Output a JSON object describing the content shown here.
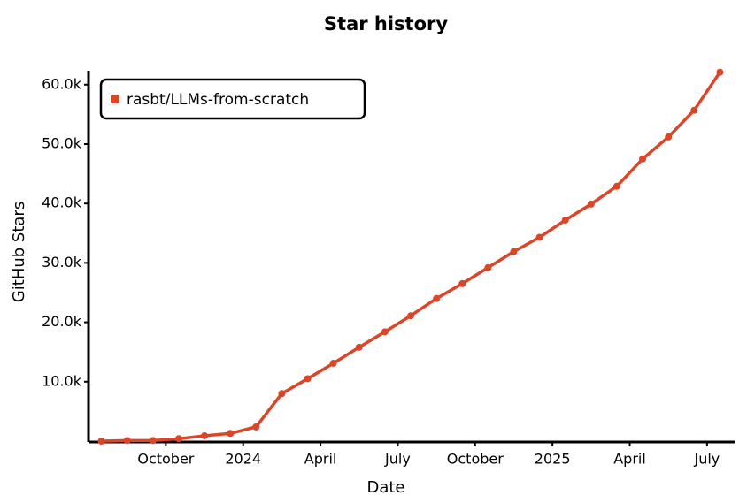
{
  "chart_data": {
    "type": "line",
    "title": "Star history",
    "x_label": "Date",
    "y_label": "GitHub Stars",
    "x": [
      "2023-07",
      "2023-08",
      "2023-09",
      "2023-10",
      "2023-11",
      "2023-12",
      "2024-01",
      "2024-02",
      "2024-03",
      "2024-04",
      "2024-05",
      "2024-06",
      "2024-07",
      "2024-08",
      "2024-09",
      "2024-10",
      "2024-11",
      "2024-12",
      "2025-01",
      "2025-02",
      "2025-03",
      "2025-04",
      "2025-05",
      "2025-06",
      "2025-07"
    ],
    "series": [
      {
        "name": "rasbt/LLMs-from-scratch",
        "color": "#dd4528",
        "values": [
          0,
          100,
          100,
          400,
          900,
          1300,
          2400,
          8000,
          10500,
          13100,
          15800,
          18400,
          21100,
          24000,
          26500,
          29200,
          31900,
          34300,
          37200,
          39900,
          42900,
          47500,
          51200,
          55700,
          62100
        ]
      }
    ],
    "xlim": [
      "2023-07",
      "2025-08"
    ],
    "xticks": [
      {
        "value": "2023-10",
        "label": "October"
      },
      {
        "value": "2024-01",
        "label": "2024"
      },
      {
        "value": "2024-04",
        "label": "April"
      },
      {
        "value": "2024-07",
        "label": "July"
      },
      {
        "value": "2024-10",
        "label": "October"
      },
      {
        "value": "2025-01",
        "label": "2025"
      },
      {
        "value": "2025-04",
        "label": "April"
      },
      {
        "value": "2025-07",
        "label": "July"
      }
    ],
    "ylim": [
      0,
      62500
    ],
    "yticks": [
      {
        "value": 10000,
        "label": "10.0k"
      },
      {
        "value": 20000,
        "label": "20.0k"
      },
      {
        "value": 30000,
        "label": "30.0k"
      },
      {
        "value": 40000,
        "label": "40.0k"
      },
      {
        "value": 50000,
        "label": "50.0k"
      },
      {
        "value": 60000,
        "label": "60.0k"
      }
    ],
    "legend": "top-left"
  }
}
